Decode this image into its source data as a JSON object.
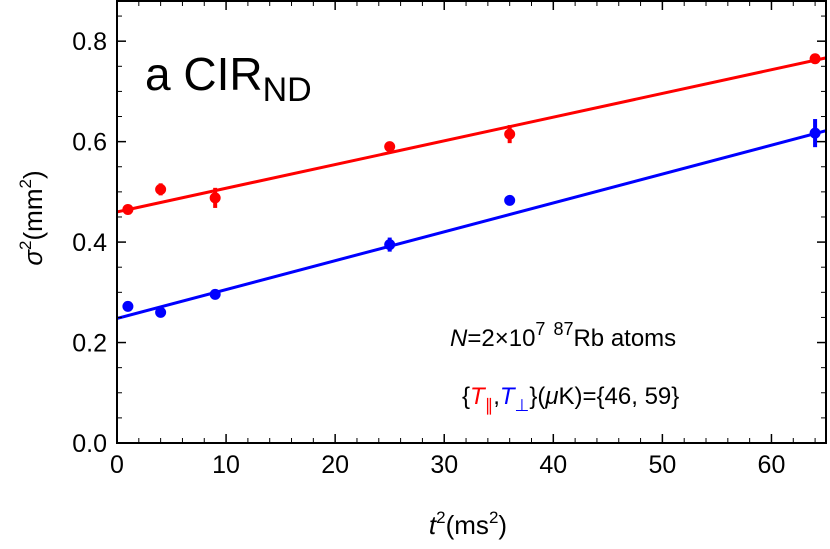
{
  "chart_data": {
    "type": "scatter",
    "panel_label": "a CIR",
    "panel_label_sub": "ND",
    "xlabel": {
      "base": "t",
      "sup": "2",
      "unit": "(ms",
      "unit_sup": "2",
      "close": ")"
    },
    "ylabel": {
      "base": "σ",
      "sup": "2",
      "unit": "(mm",
      "unit_sup": "2",
      "close": ")"
    },
    "xlim": [
      0,
      65
    ],
    "ylim": [
      0,
      0.88
    ],
    "x_ticks": [
      0,
      10,
      20,
      30,
      40,
      50,
      60
    ],
    "x_tick_labels": [
      "0",
      "10",
      "20",
      "30",
      "40",
      "50",
      "60"
    ],
    "y_ticks": [
      0,
      0.2,
      0.4,
      0.6,
      0.8
    ],
    "y_tick_labels": [
      "0.0",
      "0.2",
      "0.4",
      "0.6",
      "0.8"
    ],
    "series": [
      {
        "name": "T∥",
        "color": "#ff0000",
        "x": [
          1,
          4,
          9,
          25,
          36,
          64
        ],
        "y": [
          0.465,
          0.505,
          0.488,
          0.59,
          0.615,
          0.765
        ],
        "yerr": [
          0.006,
          0.012,
          0.02,
          0.006,
          0.018,
          0.008
        ],
        "fit": {
          "intercept": 0.46,
          "slope": 0.00472
        }
      },
      {
        "name": "T⊥",
        "color": "#0000ff",
        "x": [
          1,
          4,
          9,
          25,
          36,
          64
        ],
        "y": [
          0.272,
          0.26,
          0.296,
          0.395,
          0.483,
          0.617
        ],
        "yerr": [
          0.005,
          0.006,
          0.006,
          0.014,
          0.01,
          0.028
        ],
        "fit": {
          "intercept": 0.248,
          "slope": 0.00575
        }
      }
    ],
    "annotation_line1": {
      "n_label": "N",
      "n_value": "=2×10",
      "exp": "7",
      "isotope": "87",
      "rest": "Rb atoms"
    },
    "annotation_line2": {
      "open": "{",
      "t_par": "T",
      "t_par_sub": "∥",
      "comma": ",",
      "t_perp": "T",
      "t_perp_sub": "⊥",
      "close": "}(",
      "mu": "μ",
      "rest": "K)={46, 59}"
    }
  }
}
